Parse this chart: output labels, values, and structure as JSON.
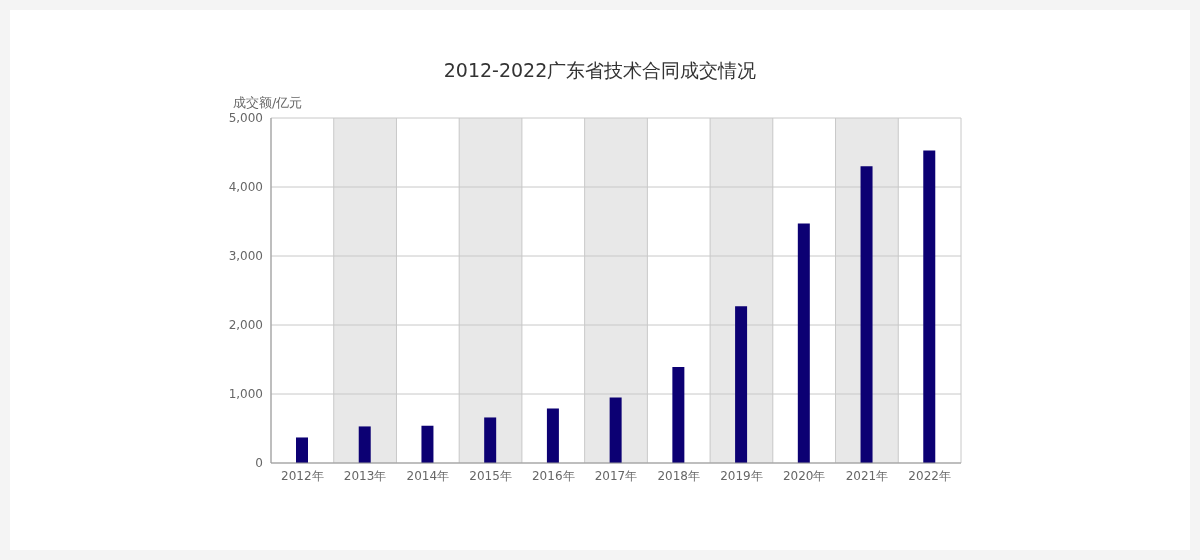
{
  "chart_data": {
    "type": "bar",
    "title": "2012-2022广东省技术合同成交情况",
    "ylabel": "成交额/亿元",
    "categories": [
      "2012年",
      "2013年",
      "2014年",
      "2015年",
      "2016年",
      "2017年",
      "2018年",
      "2019年",
      "2020年",
      "2021年",
      "2022年"
    ],
    "values": [
      370,
      530,
      540,
      660,
      790,
      950,
      1390,
      2270,
      3470,
      4300,
      4530
    ],
    "color": "#0c0073",
    "ylim": [
      0,
      5000
    ],
    "yticks": [
      0,
      {
        "value": 1000,
        "label": "1,000"
      },
      {
        "value": 2000,
        "label": "2,000"
      },
      {
        "value": 3000,
        "label": "3,000"
      },
      {
        "value": 4000,
        "label": "4,000"
      },
      {
        "value": 5000,
        "label": "5,000"
      }
    ],
    "grid": true
  }
}
